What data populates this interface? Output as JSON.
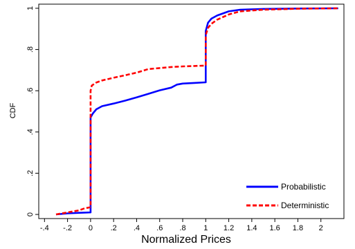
{
  "chart_data": {
    "type": "line",
    "xlabel": "Normalized Prices",
    "ylabel": "CDF",
    "xlim": [
      -0.45,
      2.2
    ],
    "ylim": [
      -0.02,
      1.02
    ],
    "x_ticks": [
      -0.4,
      -0.2,
      0,
      0.2,
      0.4,
      0.6,
      0.8,
      1,
      1.2,
      1.4,
      1.6,
      1.8,
      2
    ],
    "x_tick_labels": [
      "-.4",
      "-.2",
      "0",
      ".2",
      ".4",
      ".6",
      ".8",
      "1",
      "1.2",
      "1.4",
      "1.6",
      "1.8",
      "2"
    ],
    "y_ticks": [
      0,
      0.2,
      0.4,
      0.6,
      0.8,
      1
    ],
    "y_tick_labels": [
      "0",
      ".2",
      ".4",
      ".6",
      ".8",
      "1"
    ],
    "grid": false,
    "legend_position": "bottom-right",
    "series": [
      {
        "name": "Probabilistic",
        "color": "#0000ff",
        "style": "solid",
        "points": [
          [
            -0.3,
            0.0
          ],
          [
            -0.2,
            0.005
          ],
          [
            -0.1,
            0.008
          ],
          [
            0.0,
            0.01
          ],
          [
            0.0,
            0.47
          ],
          [
            0.02,
            0.49
          ],
          [
            0.05,
            0.51
          ],
          [
            0.1,
            0.525
          ],
          [
            0.2,
            0.538
          ],
          [
            0.3,
            0.552
          ],
          [
            0.4,
            0.568
          ],
          [
            0.5,
            0.585
          ],
          [
            0.6,
            0.602
          ],
          [
            0.7,
            0.615
          ],
          [
            0.75,
            0.63
          ],
          [
            0.8,
            0.635
          ],
          [
            0.9,
            0.638
          ],
          [
            1.0,
            0.641
          ],
          [
            1.0,
            0.89
          ],
          [
            1.02,
            0.93
          ],
          [
            1.05,
            0.95
          ],
          [
            1.1,
            0.965
          ],
          [
            1.2,
            0.985
          ],
          [
            1.3,
            0.993
          ],
          [
            1.5,
            0.997
          ],
          [
            1.8,
            0.999
          ],
          [
            2.15,
            1.0
          ]
        ]
      },
      {
        "name": "Deterministic",
        "color": "#ff0000",
        "style": "dashed",
        "points": [
          [
            -0.3,
            0.0
          ],
          [
            -0.2,
            0.01
          ],
          [
            -0.1,
            0.02
          ],
          [
            -0.05,
            0.03
          ],
          [
            0.0,
            0.035
          ],
          [
            0.0,
            0.6
          ],
          [
            0.01,
            0.625
          ],
          [
            0.05,
            0.64
          ],
          [
            0.1,
            0.65
          ],
          [
            0.2,
            0.663
          ],
          [
            0.3,
            0.675
          ],
          [
            0.4,
            0.688
          ],
          [
            0.5,
            0.705
          ],
          [
            0.6,
            0.71
          ],
          [
            0.7,
            0.715
          ],
          [
            0.8,
            0.718
          ],
          [
            0.9,
            0.72
          ],
          [
            1.0,
            0.722
          ],
          [
            1.0,
            0.87
          ],
          [
            1.02,
            0.905
          ],
          [
            1.05,
            0.925
          ],
          [
            1.1,
            0.945
          ],
          [
            1.2,
            0.97
          ],
          [
            1.3,
            0.985
          ],
          [
            1.5,
            0.993
          ],
          [
            1.8,
            0.998
          ],
          [
            2.15,
            1.0
          ]
        ]
      }
    ]
  }
}
